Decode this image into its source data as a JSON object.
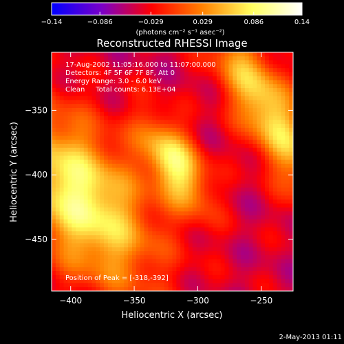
{
  "chart_data": {
    "type": "heatmap",
    "title": "Reconstructed RHESSI Image",
    "xlabel": "Heliocentric X (arcsec)",
    "ylabel": "Heliocentric Y (arcsec)",
    "xlim": [
      -415,
      -225
    ],
    "ylim": [
      -490,
      -305
    ],
    "x_ticks": [
      -400,
      -350,
      -300,
      -250
    ],
    "x_tick_labels": [
      "−400",
      "−350",
      "−300",
      "−250"
    ],
    "y_ticks": [
      -350,
      -400,
      -450
    ],
    "y_tick_labels": [
      "−350",
      "−400",
      "−450"
    ],
    "colorbar": {
      "min": -0.14,
      "max": 0.14,
      "tick_values": [
        -0.14,
        -0.086,
        -0.029,
        0.029,
        0.086,
        0.14
      ],
      "tick_labels": [
        "−0.14",
        "−0.086",
        "−0.029",
        "0.029",
        "0.086",
        "0.14"
      ],
      "unit_label": "(photons cm⁻² s⁻¹ asec⁻²)",
      "colors": [
        "#0000ff",
        "#7a00c8",
        "#ff0000",
        "#ff8000",
        "#ffff60",
        "#ffffff"
      ]
    },
    "annotations": [
      "17-Aug-2002 11:05:16.000 to 11:07:00.000",
      "Detectors: 4F 5F 6F 7F 8F, Att 0",
      "Energy Range: 3.0 - 6.0 keV",
      "Clean     Total counts: 6.13E+04"
    ],
    "peak_label": "Position of Peak = [-318,-392]",
    "sources": [
      {
        "x": -392,
        "y": -418,
        "peak": 0.14,
        "sx": 30,
        "sy": 55,
        "angle": -35
      },
      {
        "x": -318,
        "y": -392,
        "peak": 0.13,
        "sx": 14,
        "sy": 28,
        "angle": -30
      },
      {
        "x": -245,
        "y": -350,
        "peak": 0.12,
        "sx": 16,
        "sy": 55,
        "angle": -30
      }
    ]
  },
  "timestamp": "2-May-2013 01:11"
}
